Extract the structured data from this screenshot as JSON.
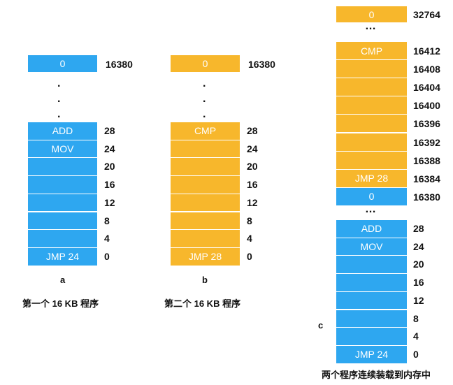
{
  "diagram_a": {
    "letter": "a",
    "caption": "第一个 16 KB 程序",
    "top_cell": {
      "label": "0",
      "address": "16380",
      "color": "blue"
    },
    "cells": [
      {
        "label": "ADD",
        "address": "28"
      },
      {
        "label": "MOV",
        "address": "24"
      },
      {
        "label": "",
        "address": "20"
      },
      {
        "label": "",
        "address": "16"
      },
      {
        "label": "",
        "address": "12"
      },
      {
        "label": "",
        "address": "8"
      },
      {
        "label": "",
        "address": "4"
      },
      {
        "label": "JMP 24",
        "address": "0"
      }
    ]
  },
  "diagram_b": {
    "letter": "b",
    "caption": "第二个 16 KB 程序",
    "top_cell": {
      "label": "0",
      "address": "16380",
      "color": "orange"
    },
    "cells": [
      {
        "label": "CMP",
        "address": "28"
      },
      {
        "label": "",
        "address": "24"
      },
      {
        "label": "",
        "address": "20"
      },
      {
        "label": "",
        "address": "16"
      },
      {
        "label": "",
        "address": "12"
      },
      {
        "label": "",
        "address": "8"
      },
      {
        "label": "",
        "address": "4"
      },
      {
        "label": "JMP 28",
        "address": "0"
      }
    ]
  },
  "diagram_c": {
    "letter": "c",
    "caption": "两个程序连续装载到内存中",
    "top_cell": {
      "label": "0",
      "address": "32764",
      "color": "orange"
    },
    "upper_cells": [
      {
        "label": "CMP",
        "address": "16412",
        "color": "orange"
      },
      {
        "label": "",
        "address": "16408",
        "color": "orange"
      },
      {
        "label": "",
        "address": "16404",
        "color": "orange"
      },
      {
        "label": "",
        "address": "16400",
        "color": "orange"
      },
      {
        "label": "",
        "address": "16396",
        "color": "orange"
      },
      {
        "label": "",
        "address": "16392",
        "color": "orange"
      },
      {
        "label": "",
        "address": "16388",
        "color": "orange"
      },
      {
        "label": "JMP 28",
        "address": "16384",
        "color": "orange"
      },
      {
        "label": "0",
        "address": "16380",
        "color": "blue"
      }
    ],
    "lower_cells": [
      {
        "label": "ADD",
        "address": "28"
      },
      {
        "label": "MOV",
        "address": "24"
      },
      {
        "label": "",
        "address": "20"
      },
      {
        "label": "",
        "address": "16"
      },
      {
        "label": "",
        "address": "12"
      },
      {
        "label": "",
        "address": "8"
      },
      {
        "label": "",
        "address": "4"
      },
      {
        "label": "JMP 24",
        "address": "0"
      }
    ]
  },
  "colors": {
    "blue": "#2ea7f0",
    "orange": "#f7b72c"
  }
}
